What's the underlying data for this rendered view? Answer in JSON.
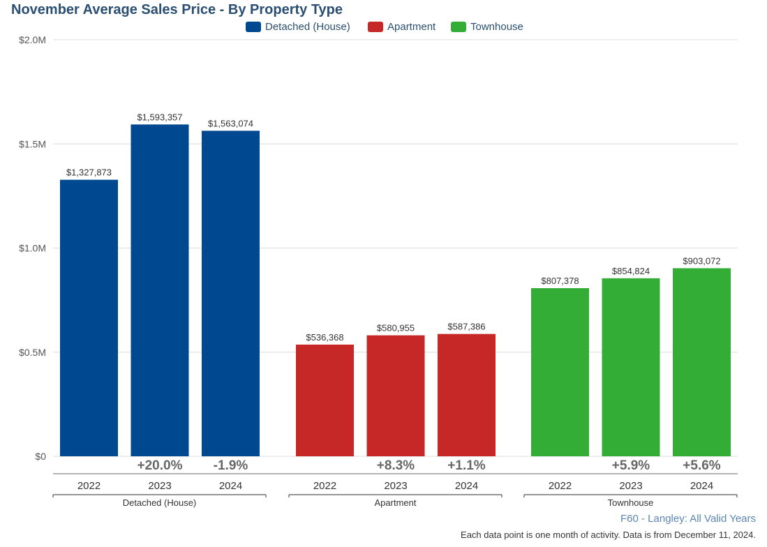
{
  "chart_data": {
    "type": "bar",
    "title": "November Average Sales Price - By Property Type",
    "ylim": [
      0,
      2000000
    ],
    "y_ticks": [
      {
        "value": 0,
        "label": "$0"
      },
      {
        "value": 500000,
        "label": "$0.5M"
      },
      {
        "value": 1000000,
        "label": "$1.0M"
      },
      {
        "value": 1500000,
        "label": "$1.5M"
      },
      {
        "value": 2000000,
        "label": "$2.0M"
      }
    ],
    "grid": true,
    "legend_position": "top-center",
    "series": [
      {
        "name": "Detached (House)",
        "group_label": "Detached (House)",
        "color": "#004990",
        "categories": [
          "2022",
          "2023",
          "2024"
        ],
        "values": [
          1327873,
          1593357,
          1563074
        ],
        "value_labels": [
          "$1,327,873",
          "$1,593,357",
          "$1,563,074"
        ],
        "changes": [
          "",
          "+20.0%",
          "-1.9%"
        ]
      },
      {
        "name": "Apartment",
        "group_label": "Apartment",
        "color": "#c62828",
        "categories": [
          "2022",
          "2023",
          "2024"
        ],
        "values": [
          536368,
          580955,
          587386
        ],
        "value_labels": [
          "$536,368",
          "$580,955",
          "$587,386"
        ],
        "changes": [
          "",
          "+8.3%",
          "+1.1%"
        ]
      },
      {
        "name": "Townhouse",
        "group_label": "Townhouse",
        "color": "#33ad36",
        "categories": [
          "2022",
          "2023",
          "2024"
        ],
        "values": [
          807378,
          854824,
          903072
        ],
        "value_labels": [
          "$807,378",
          "$854,824",
          "$903,072"
        ],
        "changes": [
          "",
          "+5.9%",
          "+5.6%"
        ]
      }
    ]
  },
  "source_label": "F60 - Langley: All Valid Years",
  "footnote": "Each data point is one month of activity. Data is from December 11, 2024."
}
